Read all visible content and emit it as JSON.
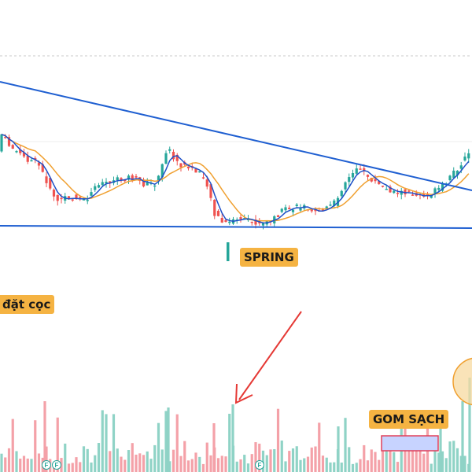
{
  "annotations": {
    "spring": "SPRING",
    "dat_coc": "đặt cọc",
    "gom_sach": "GOM SẠCH",
    "flag_glyph": "F"
  },
  "colors": {
    "up": "#26a69a",
    "down": "#ef5350",
    "vol_up": "#8fd3c6",
    "vol_down": "#f4a1a8",
    "ma_fast": "#1e50c8",
    "ma_slow": "#f0a030",
    "trendline": "#1f5fd1",
    "arrow": "#e53935",
    "label_bg": "#f5b342",
    "box_fill": "#c7d3ff",
    "box_stroke": "#e0405a",
    "circle_fill": "#f7d9a0",
    "circle_stroke": "#f0a030"
  },
  "chart_data": {
    "type": "candlestick",
    "series": [
      {
        "type": "candlestick"
      },
      {
        "type": "line"
      },
      {
        "type": "line"
      },
      {
        "type": "bar"
      }
    ],
    "trendlines": [
      {
        "kind": "descending-resistance"
      },
      {
        "kind": "support"
      }
    ],
    "regions": [
      {
        "kind": "volume-box",
        "label": "GOM SẠCH"
      },
      {
        "kind": "volume-arrow",
        "label": "SPRING"
      }
    ]
  }
}
